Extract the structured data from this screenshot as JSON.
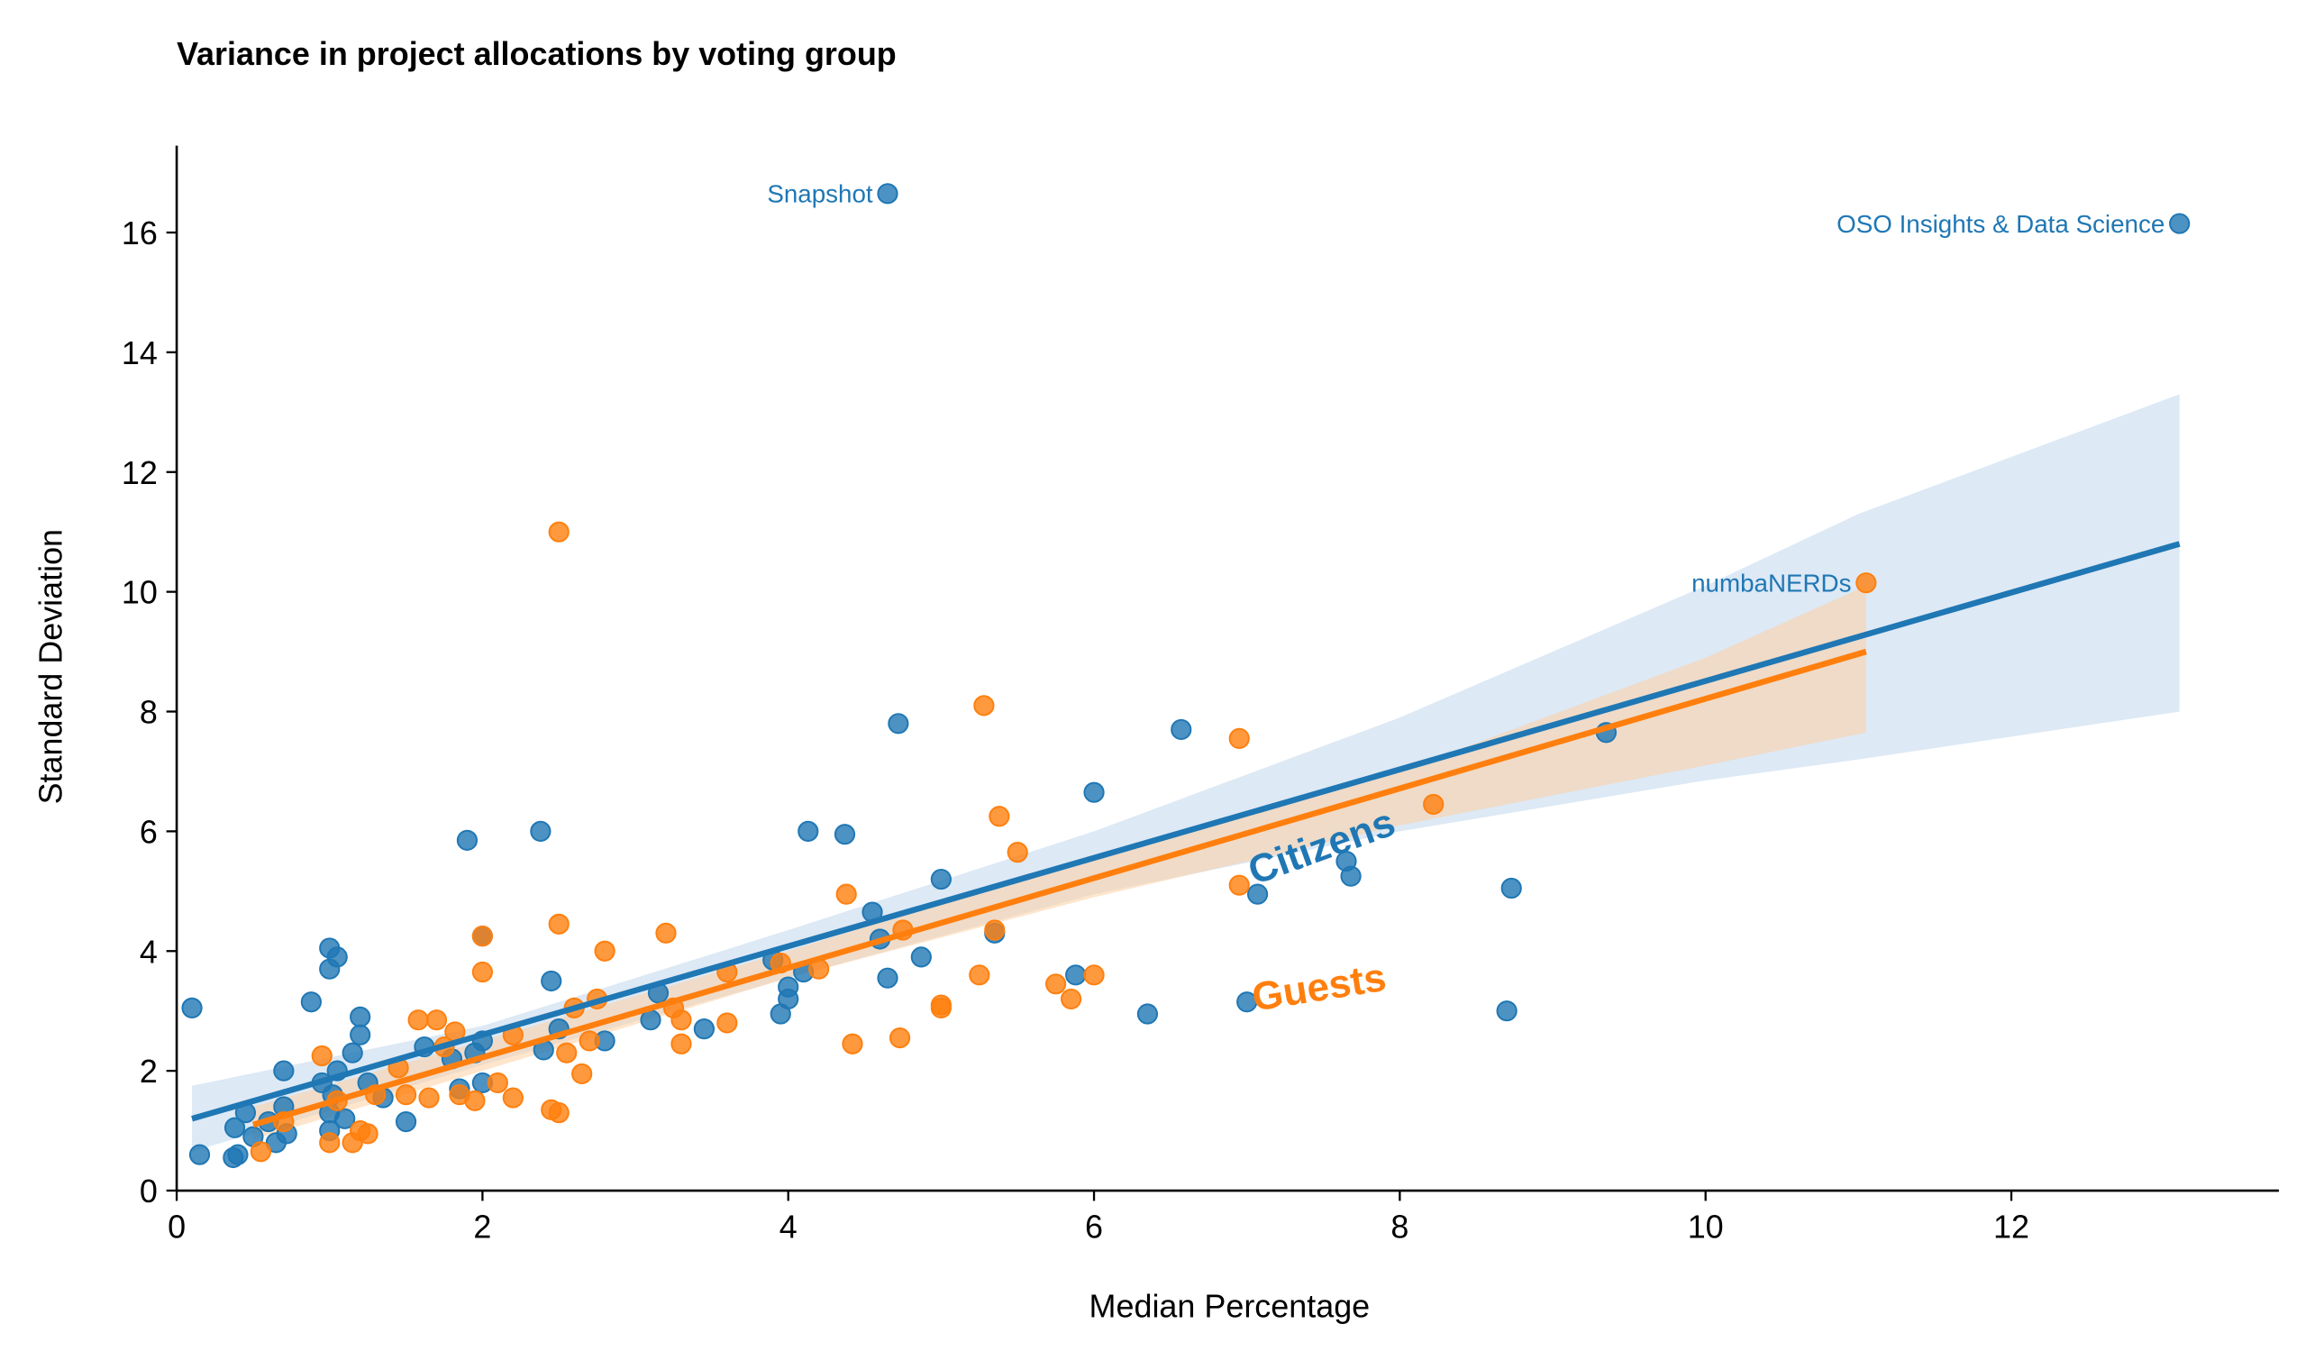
{
  "chart_data": {
    "type": "scatter",
    "title": "Variance in project allocations by voting group",
    "xlabel": "Median Percentage",
    "ylabel": "Standard Deviation",
    "xlim": [
      0,
      13.75
    ],
    "ylim": [
      0,
      17.45
    ],
    "xticks": [
      0,
      2,
      4,
      6,
      8,
      10,
      12
    ],
    "yticks": [
      0,
      2,
      4,
      6,
      8,
      10,
      12,
      14,
      16
    ],
    "grid": false,
    "legend": "none (inline labels)",
    "series": [
      {
        "name": "Citizens",
        "color": "#1f77b4",
        "label_position": {
          "x": 7.05,
          "y": 5.1
        },
        "regression": {
          "x0": 0.1,
          "y0": 1.2,
          "x1": 13.1,
          "y1": 10.8
        },
        "ci_band": {
          "x": [
            0.1,
            2,
            4,
            6,
            8,
            10,
            11,
            13.1
          ],
          "lower": [
            0.65,
            2.1,
            3.55,
            4.95,
            6.0,
            6.85,
            7.2,
            8.0
          ],
          "upper": [
            1.75,
            2.75,
            4.35,
            6.0,
            7.9,
            10.1,
            11.3,
            13.3
          ]
        },
        "points": [
          {
            "x": 0.1,
            "y": 3.05
          },
          {
            "x": 0.15,
            "y": 0.6
          },
          {
            "x": 0.37,
            "y": 0.55
          },
          {
            "x": 0.38,
            "y": 1.05
          },
          {
            "x": 0.4,
            "y": 0.6
          },
          {
            "x": 0.45,
            "y": 1.3
          },
          {
            "x": 0.5,
            "y": 0.9
          },
          {
            "x": 0.6,
            "y": 1.15
          },
          {
            "x": 0.65,
            "y": 0.8
          },
          {
            "x": 0.7,
            "y": 2.0
          },
          {
            "x": 0.7,
            "y": 1.4
          },
          {
            "x": 0.72,
            "y": 0.95
          },
          {
            "x": 0.88,
            "y": 3.15
          },
          {
            "x": 0.95,
            "y": 1.8
          },
          {
            "x": 1.0,
            "y": 4.05
          },
          {
            "x": 1.0,
            "y": 3.7
          },
          {
            "x": 1.0,
            "y": 1.0
          },
          {
            "x": 1.0,
            "y": 1.3
          },
          {
            "x": 1.02,
            "y": 1.6
          },
          {
            "x": 1.05,
            "y": 3.9
          },
          {
            "x": 1.05,
            "y": 2.0
          },
          {
            "x": 1.1,
            "y": 1.2
          },
          {
            "x": 1.15,
            "y": 2.3
          },
          {
            "x": 1.2,
            "y": 2.9
          },
          {
            "x": 1.2,
            "y": 2.6
          },
          {
            "x": 1.25,
            "y": 1.8
          },
          {
            "x": 1.35,
            "y": 1.55
          },
          {
            "x": 1.5,
            "y": 1.15
          },
          {
            "x": 1.62,
            "y": 2.4
          },
          {
            "x": 1.8,
            "y": 2.2
          },
          {
            "x": 1.85,
            "y": 1.7
          },
          {
            "x": 1.9,
            "y": 5.85
          },
          {
            "x": 1.95,
            "y": 2.3
          },
          {
            "x": 2.0,
            "y": 4.25
          },
          {
            "x": 2.0,
            "y": 2.5
          },
          {
            "x": 2.0,
            "y": 1.8
          },
          {
            "x": 2.38,
            "y": 6.0
          },
          {
            "x": 2.4,
            "y": 2.35
          },
          {
            "x": 2.45,
            "y": 3.5
          },
          {
            "x": 2.5,
            "y": 2.7
          },
          {
            "x": 2.8,
            "y": 2.5
          },
          {
            "x": 3.1,
            "y": 2.85
          },
          {
            "x": 3.15,
            "y": 3.3
          },
          {
            "x": 3.45,
            "y": 2.7
          },
          {
            "x": 3.9,
            "y": 3.85
          },
          {
            "x": 3.95,
            "y": 2.95
          },
          {
            "x": 4.0,
            "y": 3.4
          },
          {
            "x": 4.0,
            "y": 3.2
          },
          {
            "x": 4.1,
            "y": 3.65
          },
          {
            "x": 4.13,
            "y": 6.0
          },
          {
            "x": 4.37,
            "y": 5.95
          },
          {
            "x": 4.55,
            "y": 4.65
          },
          {
            "x": 4.6,
            "y": 4.2
          },
          {
            "x": 4.65,
            "y": 3.55
          },
          {
            "x": 4.72,
            "y": 7.8
          },
          {
            "x": 4.87,
            "y": 3.9
          },
          {
            "x": 5.0,
            "y": 5.2
          },
          {
            "x": 5.35,
            "y": 4.3
          },
          {
            "x": 5.88,
            "y": 3.6
          },
          {
            "x": 6.0,
            "y": 6.65
          },
          {
            "x": 6.35,
            "y": 2.95
          },
          {
            "x": 6.57,
            "y": 7.7
          },
          {
            "x": 7.0,
            "y": 3.15
          },
          {
            "x": 7.07,
            "y": 4.95
          },
          {
            "x": 7.65,
            "y": 5.5
          },
          {
            "x": 7.68,
            "y": 5.25
          },
          {
            "x": 8.7,
            "y": 3.0
          },
          {
            "x": 8.73,
            "y": 5.05
          },
          {
            "x": 9.35,
            "y": 7.65
          },
          {
            "x": 4.65,
            "y": 16.65,
            "label": "Snapshot"
          },
          {
            "x": 13.1,
            "y": 16.15,
            "label": "OSO Insights & Data Science"
          }
        ]
      },
      {
        "name": "Guests",
        "color": "#ff7f0e",
        "label_position": {
          "x": 7.05,
          "y": 3.0
        },
        "regression": {
          "x0": 0.5,
          "y0": 1.1,
          "x1": 11.05,
          "y1": 9.0
        },
        "ci_band": {
          "x": [
            0.5,
            2,
            4,
            6,
            8,
            10,
            11.05
          ],
          "lower": [
            0.85,
            2.0,
            3.55,
            4.9,
            6.1,
            7.1,
            7.65
          ],
          "upper": [
            1.4,
            2.5,
            4.0,
            5.6,
            7.0,
            8.9,
            10.1
          ]
        },
        "points": [
          {
            "x": 0.55,
            "y": 0.65
          },
          {
            "x": 0.7,
            "y": 1.15
          },
          {
            "x": 0.95,
            "y": 2.25
          },
          {
            "x": 1.0,
            "y": 0.8
          },
          {
            "x": 1.05,
            "y": 1.5
          },
          {
            "x": 1.15,
            "y": 0.8
          },
          {
            "x": 1.2,
            "y": 1.0
          },
          {
            "x": 1.25,
            "y": 0.95
          },
          {
            "x": 1.3,
            "y": 1.6
          },
          {
            "x": 1.45,
            "y": 2.05
          },
          {
            "x": 1.5,
            "y": 1.6
          },
          {
            "x": 1.58,
            "y": 2.85
          },
          {
            "x": 1.65,
            "y": 1.55
          },
          {
            "x": 1.7,
            "y": 2.85
          },
          {
            "x": 1.75,
            "y": 2.4
          },
          {
            "x": 1.82,
            "y": 2.65
          },
          {
            "x": 1.85,
            "y": 1.6
          },
          {
            "x": 1.95,
            "y": 1.5
          },
          {
            "x": 2.0,
            "y": 3.65
          },
          {
            "x": 2.0,
            "y": 4.25
          },
          {
            "x": 2.1,
            "y": 1.8
          },
          {
            "x": 2.2,
            "y": 1.55
          },
          {
            "x": 2.2,
            "y": 2.6
          },
          {
            "x": 2.45,
            "y": 1.35
          },
          {
            "x": 2.5,
            "y": 1.3
          },
          {
            "x": 2.5,
            "y": 11.0
          },
          {
            "x": 2.5,
            "y": 4.45
          },
          {
            "x": 2.55,
            "y": 2.3
          },
          {
            "x": 2.6,
            "y": 3.05
          },
          {
            "x": 2.65,
            "y": 1.95
          },
          {
            "x": 2.7,
            "y": 2.5
          },
          {
            "x": 2.75,
            "y": 3.2
          },
          {
            "x": 2.8,
            "y": 4.0
          },
          {
            "x": 3.2,
            "y": 4.3
          },
          {
            "x": 3.25,
            "y": 3.05
          },
          {
            "x": 3.3,
            "y": 2.85
          },
          {
            "x": 3.3,
            "y": 2.45
          },
          {
            "x": 3.6,
            "y": 3.65
          },
          {
            "x": 3.6,
            "y": 2.8
          },
          {
            "x": 3.95,
            "y": 3.8
          },
          {
            "x": 4.2,
            "y": 3.7
          },
          {
            "x": 4.38,
            "y": 4.95
          },
          {
            "x": 4.42,
            "y": 2.45
          },
          {
            "x": 4.73,
            "y": 2.55
          },
          {
            "x": 4.75,
            "y": 4.35
          },
          {
            "x": 5.0,
            "y": 3.1
          },
          {
            "x": 5.0,
            "y": 3.05
          },
          {
            "x": 5.25,
            "y": 3.6
          },
          {
            "x": 5.28,
            "y": 8.1
          },
          {
            "x": 5.35,
            "y": 4.35
          },
          {
            "x": 5.38,
            "y": 6.25
          },
          {
            "x": 5.5,
            "y": 5.65
          },
          {
            "x": 5.75,
            "y": 3.45
          },
          {
            "x": 5.85,
            "y": 3.2
          },
          {
            "x": 6.0,
            "y": 3.6
          },
          {
            "x": 6.95,
            "y": 7.55
          },
          {
            "x": 6.95,
            "y": 5.1
          },
          {
            "x": 8.22,
            "y": 6.45
          },
          {
            "x": 11.05,
            "y": 10.15,
            "label": "numbaNERDs"
          }
        ]
      }
    ]
  }
}
